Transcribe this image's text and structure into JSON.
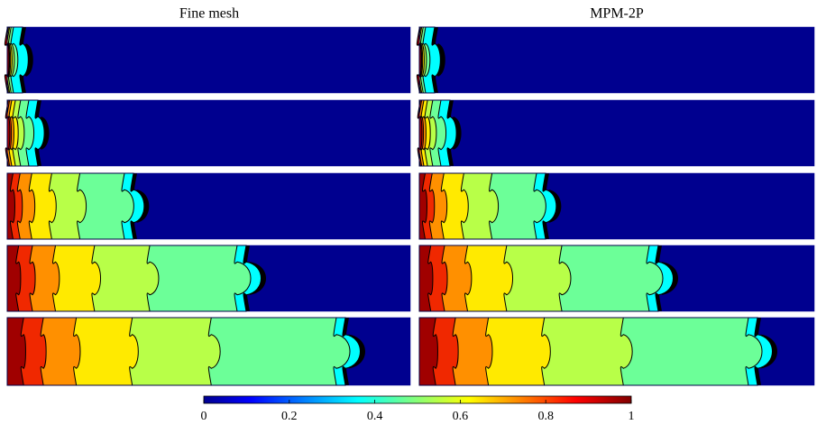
{
  "chart_data": {
    "type": "contour",
    "panel_titles": [
      "Fine mesh",
      "MPM-2P"
    ],
    "colorbar": {
      "lim": [
        0,
        1
      ],
      "ticks": [
        0,
        0.2,
        0.4,
        0.6,
        0.8,
        1
      ]
    }
  }
}
